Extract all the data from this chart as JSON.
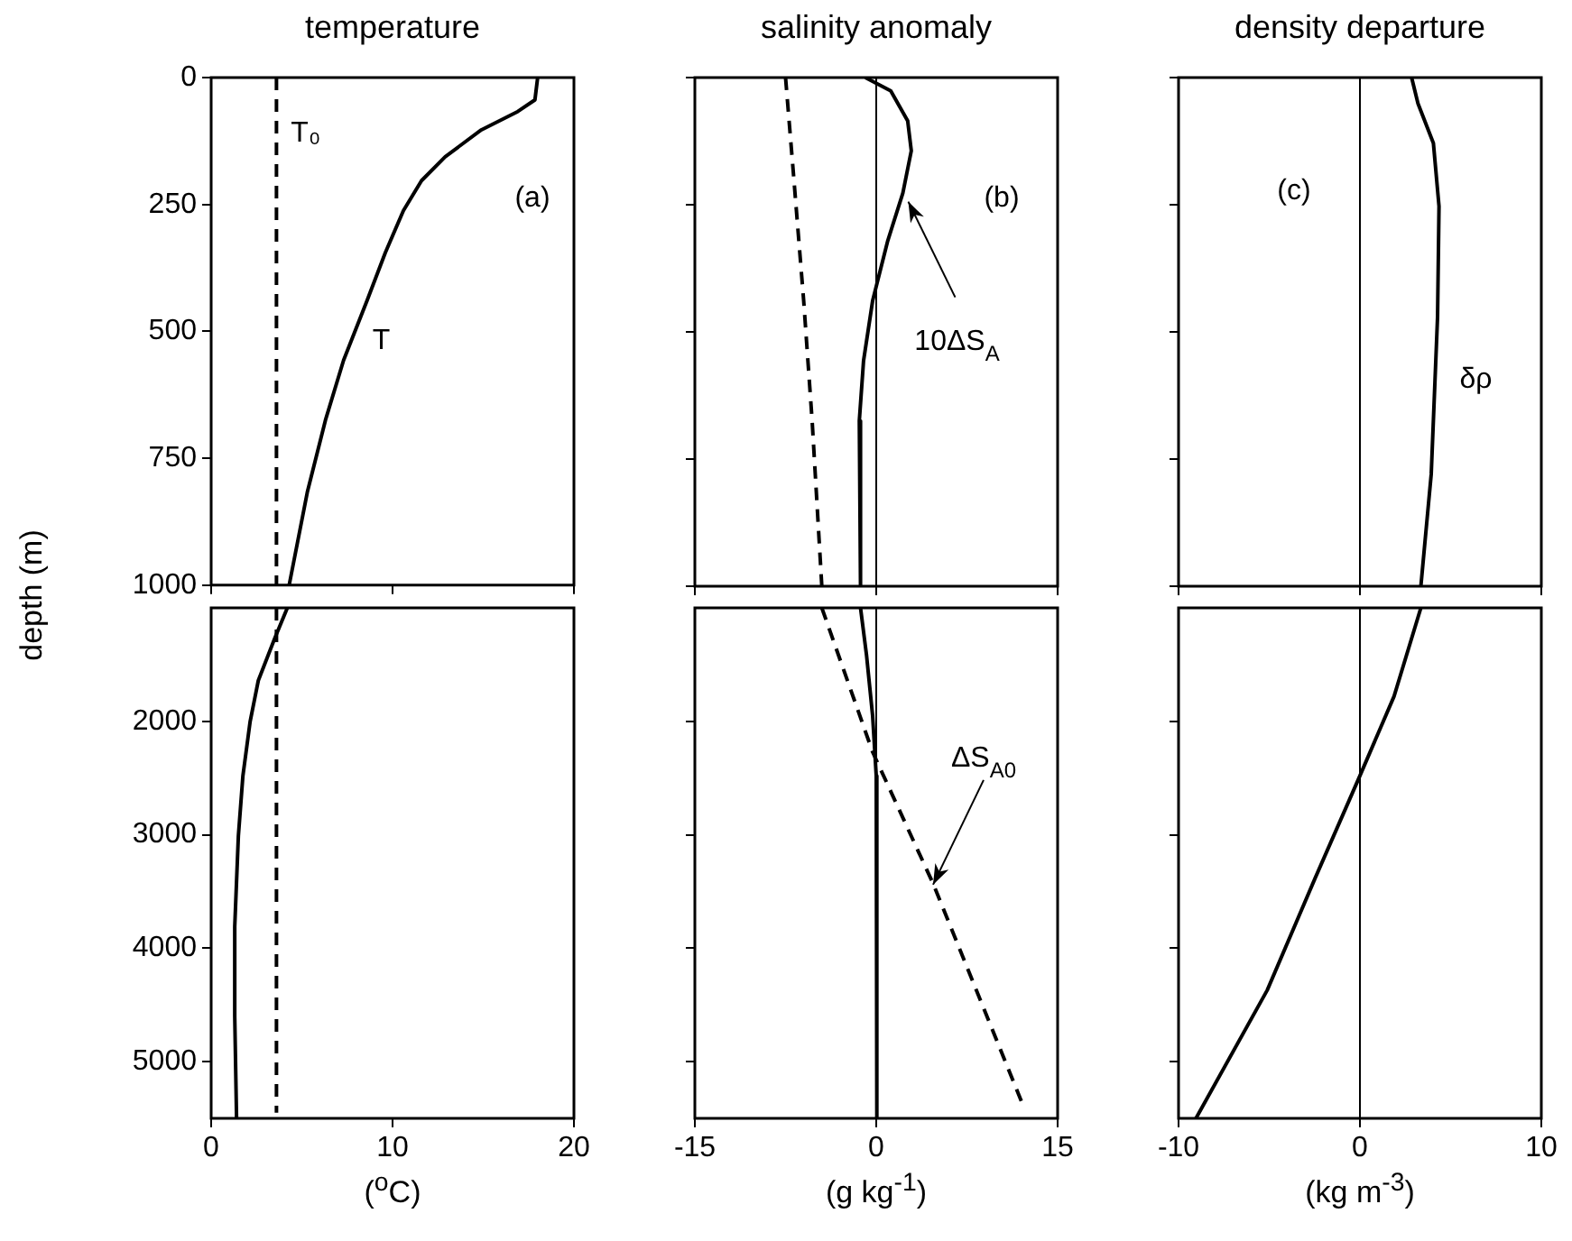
{
  "chart_data": [
    {
      "type": "line",
      "title": "temperature",
      "ylabel": "depth (m)",
      "marker": "none",
      "legend": false,
      "xlim": [
        0,
        20
      ],
      "xticks": [
        0,
        10,
        20
      ],
      "ylim": [
        1000,
        0
      ],
      "yticks": [
        0,
        250,
        500,
        750,
        1000
      ],
      "tick_labels": "y",
      "annotations": [
        "(a)",
        {
          "text": "T₀",
          "x": 3.6,
          "y": 110
        },
        {
          "text": "T",
          "x": 7.5,
          "y": 520
        }
      ],
      "series": [
        {
          "color": "#000000",
          "line_style": "solid",
          "x": [
            18.0,
            17.85,
            16.9,
            14.9,
            12.9,
            11.6,
            10.6,
            9.6,
            8.6,
            7.3,
            6.3,
            5.3,
            4.3
          ],
          "values": [
            0,
            44,
            67,
            103,
            156,
            203,
            262,
            345,
            439,
            557,
            675,
            817,
            1000
          ]
        },
        {
          "color": "#000000",
          "line_style": "dashed",
          "x": [
            3.6,
            3.6
          ],
          "values": [
            0,
            1000
          ]
        }
      ]
    },
    {
      "type": "line",
      "title": "salinity anomaly",
      "marker": "none",
      "legend": false,
      "xlim": [
        -15,
        15
      ],
      "xticks": [
        -15,
        0,
        15
      ],
      "ylim": [
        1000,
        0
      ],
      "yticks": [
        0,
        250,
        500,
        750,
        1000
      ],
      "tick_labels": false,
      "ref_lines": [
        {
          "axis": "x",
          "value": 0
        }
      ],
      "annotations": [
        "(b)",
        {
          "text": "10ΔS$_{A}$",
          "x": 2.65,
          "y": 244
        }
      ],
      "series": [
        {
          "color": "#000000",
          "line_style": "solid",
          "x": [
            -0.9,
            1.2,
            2.6,
            2.9,
            2.2,
            0.95,
            -0.3,
            -1.05,
            -1.4,
            -1.3
          ],
          "values": [
            0,
            26,
            85,
            144,
            227,
            321,
            439,
            557,
            675,
            1000
          ]
        },
        {
          "color": "#000000",
          "line_style": "dashed",
          "x": [
            -7.5,
            -6.8,
            -6.0,
            -5.3,
            -4.5
          ],
          "values": [
            0,
            203,
            439,
            675,
            1000
          ]
        }
      ]
    },
    {
      "type": "line",
      "title": "density departure",
      "marker": "none",
      "legend": false,
      "xlim": [
        -10,
        10
      ],
      "xticks": [
        -10,
        0,
        10
      ],
      "ylim": [
        1000,
        0
      ],
      "yticks": [
        0,
        250,
        500,
        750,
        1000
      ],
      "tick_labels": false,
      "ref_lines": [
        {
          "axis": "x",
          "value": 0
        }
      ],
      "annotations": [
        "(c)",
        {
          "text": "δρ",
          "x": 3.9,
          "y": 595
        }
      ],
      "series": [
        {
          "color": "#000000",
          "line_style": "solid",
          "x": [
            2.85,
            3.2,
            4.05,
            4.36,
            4.28,
            3.93,
            3.36
          ],
          "values": [
            0,
            51,
            129,
            253,
            470,
            780,
            1000
          ]
        }
      ]
    },
    {
      "type": "line",
      "xlabel": "($^{o}$C)",
      "marker": "none",
      "legend": false,
      "xlim": [
        0,
        20
      ],
      "xticks": [
        0,
        10,
        20
      ],
      "ylim": [
        5500,
        1000
      ],
      "yticks": [
        2000,
        3000,
        4000,
        5000
      ],
      "series": [
        {
          "color": "#000000",
          "line_style": "solid",
          "x": [
            4.2,
            3.5,
            2.6,
            2.15,
            1.75,
            1.5,
            1.3,
            1.3,
            1.4
          ],
          "values": [
            1000,
            1270,
            1640,
            2000,
            2480,
            3010,
            3810,
            4600,
            5500
          ]
        },
        {
          "color": "#000000",
          "line_style": "dashed",
          "x": [
            3.6,
            3.6
          ],
          "values": [
            1000,
            5450
          ]
        }
      ]
    },
    {
      "type": "line",
      "xlabel": "(g kg$^{-1}$)",
      "marker": "none",
      "legend": false,
      "xlim": [
        -15,
        15
      ],
      "xticks": [
        -15,
        0,
        15
      ],
      "ylim": [
        5500,
        1000
      ],
      "yticks": [
        2000,
        3000,
        4000,
        5000
      ],
      "tick_labels": "x",
      "ref_lines": [
        {
          "axis": "x",
          "value": 0
        }
      ],
      "annotations": [
        {
          "text": "ΔS$_{A0}$",
          "x": 4.7,
          "y": 3440
        }
      ],
      "series": [
        {
          "color": "#000000",
          "line_style": "solid",
          "x": [
            -1.3,
            -0.8,
            -0.3,
            0,
            0.05,
            0.05
          ],
          "values": [
            1000,
            1420,
            1950,
            2480,
            3540,
            5500
          ]
        },
        {
          "color": "#000000",
          "line_style": "dashed",
          "x": [
            -4.5,
            -0.3,
            4.7,
            12.2
          ],
          "values": [
            1000,
            2270,
            3430,
            5400
          ]
        }
      ]
    },
    {
      "type": "line",
      "xlabel": "(kg m$^{-3}$)",
      "marker": "none",
      "legend": false,
      "xlim": [
        -10,
        10
      ],
      "xticks": [
        -10,
        0,
        10
      ],
      "ylim": [
        5500,
        1000
      ],
      "yticks": [
        2000,
        3000,
        4000,
        5000
      ],
      "tick_labels": "x",
      "ref_lines": [
        {
          "axis": "x",
          "value": 0
        }
      ],
      "series": [
        {
          "color": "#000000",
          "line_style": "solid",
          "x": [
            3.36,
            1.88,
            0,
            -2.49,
            -5.11,
            -9.04
          ],
          "values": [
            1000,
            1780,
            2480,
            3390,
            4370,
            5500
          ]
        }
      ]
    }
  ]
}
